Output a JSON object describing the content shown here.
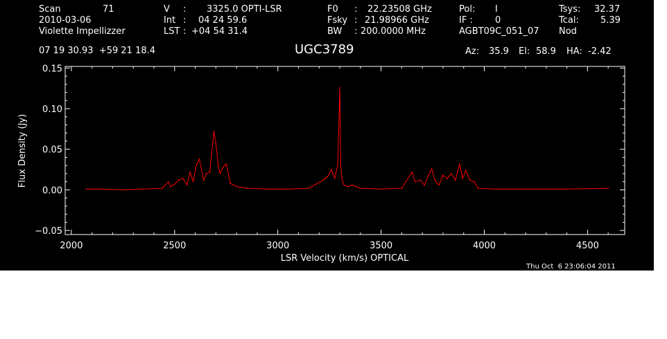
{
  "header": {
    "scan_label": "Scan",
    "scan_value": "71",
    "date": "2010-03-06",
    "observer": "Violette Impellizzer",
    "v_label": "V",
    "v_sep": ":",
    "v_value": "3325.0 OPTI-LSR",
    "int_label": "Int",
    "int_sep": ":",
    "int_value": "04 24 59.6",
    "lst_label": "LST",
    "lst_sep": ":",
    "lst_value": "+04 54 31.4",
    "f0_label": "F0",
    "f0_sep": ":",
    "f0_value": "22.23508 GHz",
    "fsky_label": "Fsky",
    "fsky_sep": ":",
    "fsky_value": "21.98966 GHz",
    "bw_label": "BW",
    "bw_sep": ":",
    "bw_value": "200.0000 MHz",
    "pol_label": "Pol:",
    "pol_value": "I",
    "if_label": "IF :",
    "if_value": "0",
    "project": "AGBT09C_051_07",
    "tsys_label": "Tsys:",
    "tsys_value": "32.37",
    "tcal_label": "Tcal:",
    "tcal_value": "5.39",
    "mode": "Nod",
    "coords": "07 19 30.93  +59 21 18.4",
    "source": "UGC3789",
    "az_label": "Az:",
    "az_value": "35.9",
    "el_label": "El:",
    "el_value": "58.9",
    "ha_label": "HA:",
    "ha_value": "-2.42"
  },
  "timestamp": "Thu Oct  6 23:06:04 2011",
  "colors": {
    "background": "#000000",
    "axes": "#ffffff",
    "trace": "#ff0000",
    "page": "#ffffff"
  },
  "chart_data": {
    "type": "line",
    "title": "UGC3789",
    "xlabel": "LSR Velocity (km/s) OPTICAL",
    "ylabel": "Flux Density (Jy)",
    "xlim": [
      1970,
      4680
    ],
    "ylim": [
      -0.055,
      0.152
    ],
    "xticks": [
      2000,
      2500,
      3000,
      3500,
      4000,
      4500
    ],
    "xtick_labels": [
      "2000",
      "2500",
      "3000",
      "3500",
      "4000",
      "4500"
    ],
    "yticks": [
      -0.05,
      0.0,
      0.05,
      0.1,
      0.15
    ],
    "ytick_labels": [
      "−0.05",
      "0.00",
      "0.05",
      "0.10",
      "0.15"
    ],
    "grid": false,
    "series": [
      {
        "color": "#ff0000",
        "x": [
          2070,
          2150,
          2250,
          2350,
          2440,
          2470,
          2480,
          2500,
          2520,
          2540,
          2560,
          2575,
          2590,
          2605,
          2620,
          2640,
          2655,
          2670,
          2680,
          2690,
          2700,
          2710,
          2720,
          2735,
          2750,
          2770,
          2800,
          2850,
          2950,
          3050,
          3150,
          3220,
          3240,
          3260,
          3275,
          3290,
          3300,
          3305,
          3310,
          3320,
          3340,
          3360,
          3400,
          3500,
          3600,
          3650,
          3665,
          3690,
          3710,
          3730,
          3745,
          3760,
          3780,
          3800,
          3820,
          3840,
          3860,
          3880,
          3895,
          3910,
          3930,
          3950,
          3970,
          4050,
          4200,
          4400,
          4600
        ],
        "y": [
          0.001,
          0.001,
          0.0,
          0.001,
          0.002,
          0.01,
          0.004,
          0.007,
          0.012,
          0.014,
          0.006,
          0.022,
          0.01,
          0.03,
          0.038,
          0.012,
          0.02,
          0.022,
          0.045,
          0.072,
          0.058,
          0.032,
          0.02,
          0.028,
          0.032,
          0.008,
          0.004,
          0.002,
          0.001,
          0.001,
          0.002,
          0.012,
          0.016,
          0.025,
          0.014,
          0.03,
          0.126,
          0.03,
          0.014,
          0.006,
          0.004,
          0.006,
          0.002,
          0.001,
          0.002,
          0.022,
          0.01,
          0.012,
          0.006,
          0.018,
          0.026,
          0.012,
          0.006,
          0.018,
          0.014,
          0.02,
          0.012,
          0.032,
          0.014,
          0.024,
          0.012,
          0.01,
          0.002,
          0.001,
          0.001,
          0.001,
          0.002
        ]
      }
    ]
  }
}
